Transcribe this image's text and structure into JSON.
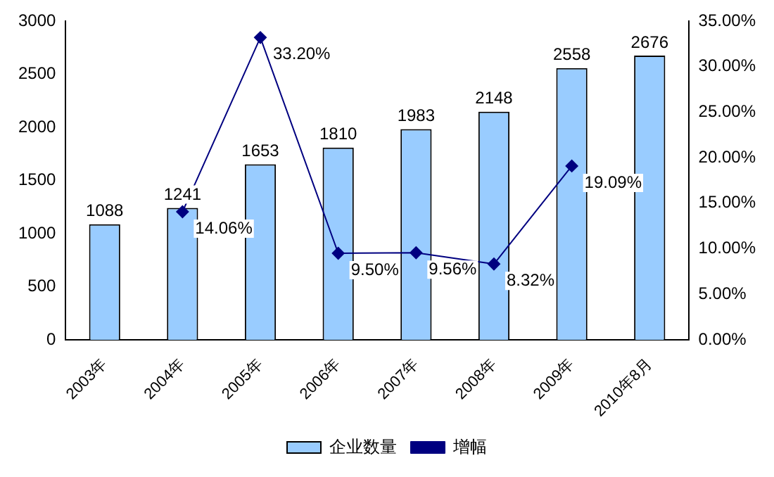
{
  "chart_data": {
    "type": "bar",
    "categories": [
      "2003年",
      "2004年",
      "2005年",
      "2006年",
      "2007年",
      "2008年",
      "2009年",
      "2010年8月"
    ],
    "series": [
      {
        "name": "企业数量",
        "color": "#99ccff",
        "values": [
          1088,
          1241,
          1653,
          1810,
          1983,
          2148,
          2558,
          2676
        ],
        "value_labels": [
          "1088",
          "1241",
          "1653",
          "1810",
          "1983",
          "2148",
          "2558",
          "2676"
        ]
      },
      {
        "name": "增幅",
        "type": "line",
        "axis": "y2",
        "color": "#000080",
        "values": [
          null,
          14.06,
          33.2,
          9.5,
          9.56,
          8.32,
          19.09,
          null
        ],
        "value_labels": [
          null,
          "14.06%",
          "33.20%",
          "9.50%",
          "9.56%",
          "8.32%",
          "19.09%",
          null
        ]
      }
    ],
    "ylim": [
      0,
      3000
    ],
    "yticks": [
      0,
      500,
      1000,
      1500,
      2000,
      2500,
      3000
    ],
    "y2lim": [
      0,
      35
    ],
    "y2ticks": [
      {
        "value": 0,
        "label": "0.00%"
      },
      {
        "value": 5,
        "label": "5.00%"
      },
      {
        "value": 10,
        "label": "10.00%"
      },
      {
        "value": 15,
        "label": "15.00%"
      },
      {
        "value": 20,
        "label": "20.00%"
      },
      {
        "value": 25,
        "label": "25.00%"
      },
      {
        "value": 30,
        "label": "30.00%"
      },
      {
        "value": 35,
        "label": "35.00%"
      }
    ],
    "grid": false,
    "legend": "bottom",
    "marker": "diamond",
    "line_style": "solid"
  }
}
